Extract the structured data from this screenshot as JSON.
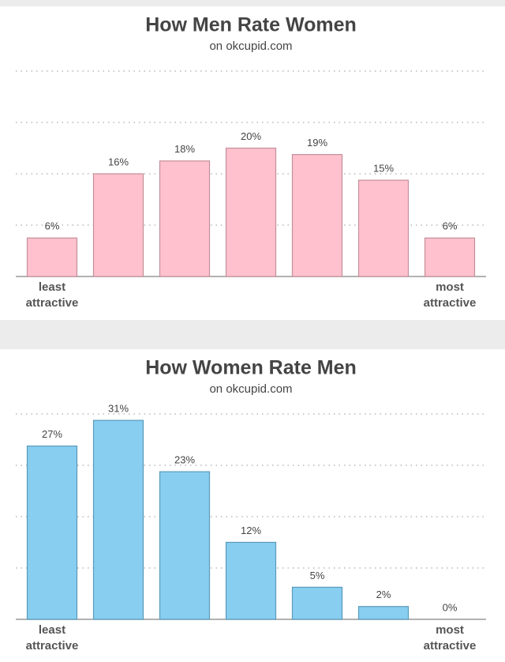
{
  "chart_data": [
    {
      "type": "bar",
      "title": "How Men Rate Women",
      "subtitle": "on okcupid.com",
      "categories": [
        "least attractive",
        null,
        null,
        null,
        null,
        null,
        "most attractive"
      ],
      "values": [
        6,
        16,
        18,
        20,
        19,
        15,
        6
      ],
      "value_labels": [
        "6%",
        "16%",
        "18%",
        "20%",
        "19%",
        "15%",
        "6%"
      ],
      "color": "#ffc1cd",
      "ylim": [
        0,
        32
      ],
      "yticks": [
        0,
        8,
        16,
        24,
        32
      ],
      "grid": true
    },
    {
      "type": "bar",
      "title": "How Women Rate Men",
      "subtitle": "on okcupid.com",
      "categories": [
        "least attractive",
        null,
        null,
        null,
        null,
        null,
        "most attractive"
      ],
      "values": [
        27,
        31,
        23,
        12,
        5,
        2,
        0
      ],
      "value_labels": [
        "27%",
        "31%",
        "23%",
        "12%",
        "5%",
        "2%",
        "0%"
      ],
      "color": "#87cef0",
      "ylim": [
        0,
        32
      ],
      "yticks": [
        0,
        8,
        16,
        24,
        32
      ],
      "grid": true
    }
  ]
}
